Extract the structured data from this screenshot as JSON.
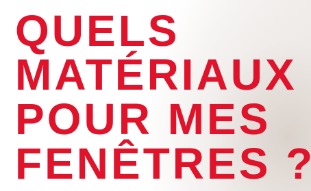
{
  "heading": {
    "lines": [
      "QUELS",
      "MATÉRIAUX",
      "POUR MES",
      "FENÊTRES ?"
    ]
  }
}
